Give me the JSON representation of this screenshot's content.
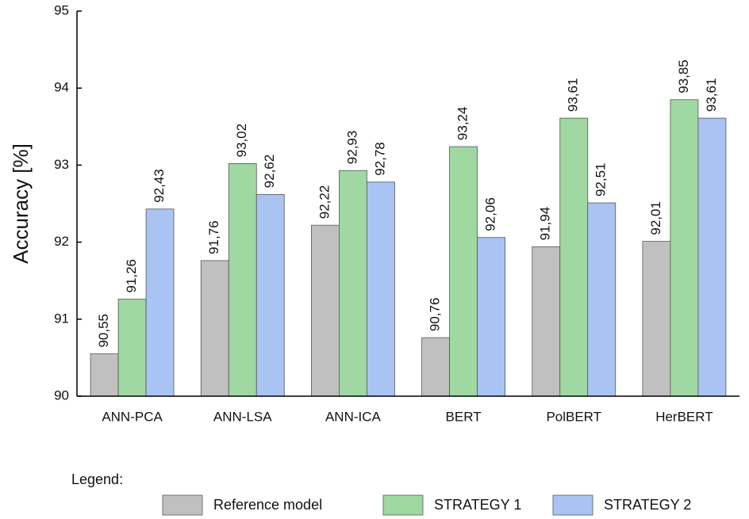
{
  "chart_data": {
    "type": "bar",
    "y_label": "Accuracy [%]",
    "legend_title": "Legend:",
    "legend_position": "bottom",
    "categories": [
      "ANN-PCA",
      "ANN-LSA",
      "ANN-ICA",
      "BERT",
      "PolBERT",
      "HerBERT"
    ],
    "series": [
      {
        "name": "Reference model",
        "color": "#c0c0c0",
        "values": [
          90.55,
          91.76,
          92.22,
          90.76,
          91.94,
          92.01
        ],
        "value_labels": [
          "90,55",
          "91,76",
          "92,22",
          "90,76",
          "91,94",
          "92,01"
        ]
      },
      {
        "name": "STRATEGY 1",
        "color": "#9fd8a0",
        "values": [
          91.26,
          93.02,
          92.93,
          93.24,
          93.61,
          93.85
        ],
        "value_labels": [
          "91,26",
          "93,02",
          "92,93",
          "93,24",
          "93,61",
          "93,85"
        ]
      },
      {
        "name": "STRATEGY 2",
        "color": "#a9c3f3",
        "values": [
          92.43,
          92.62,
          92.78,
          92.06,
          92.51,
          93.61
        ],
        "value_labels": [
          "92,43",
          "92,62",
          "92,78",
          "92,06",
          "92,51",
          "93,61"
        ]
      }
    ],
    "ylim": [
      90,
      95
    ],
    "yticks": [
      90,
      91,
      92,
      93,
      94,
      95
    ],
    "grid": false
  }
}
